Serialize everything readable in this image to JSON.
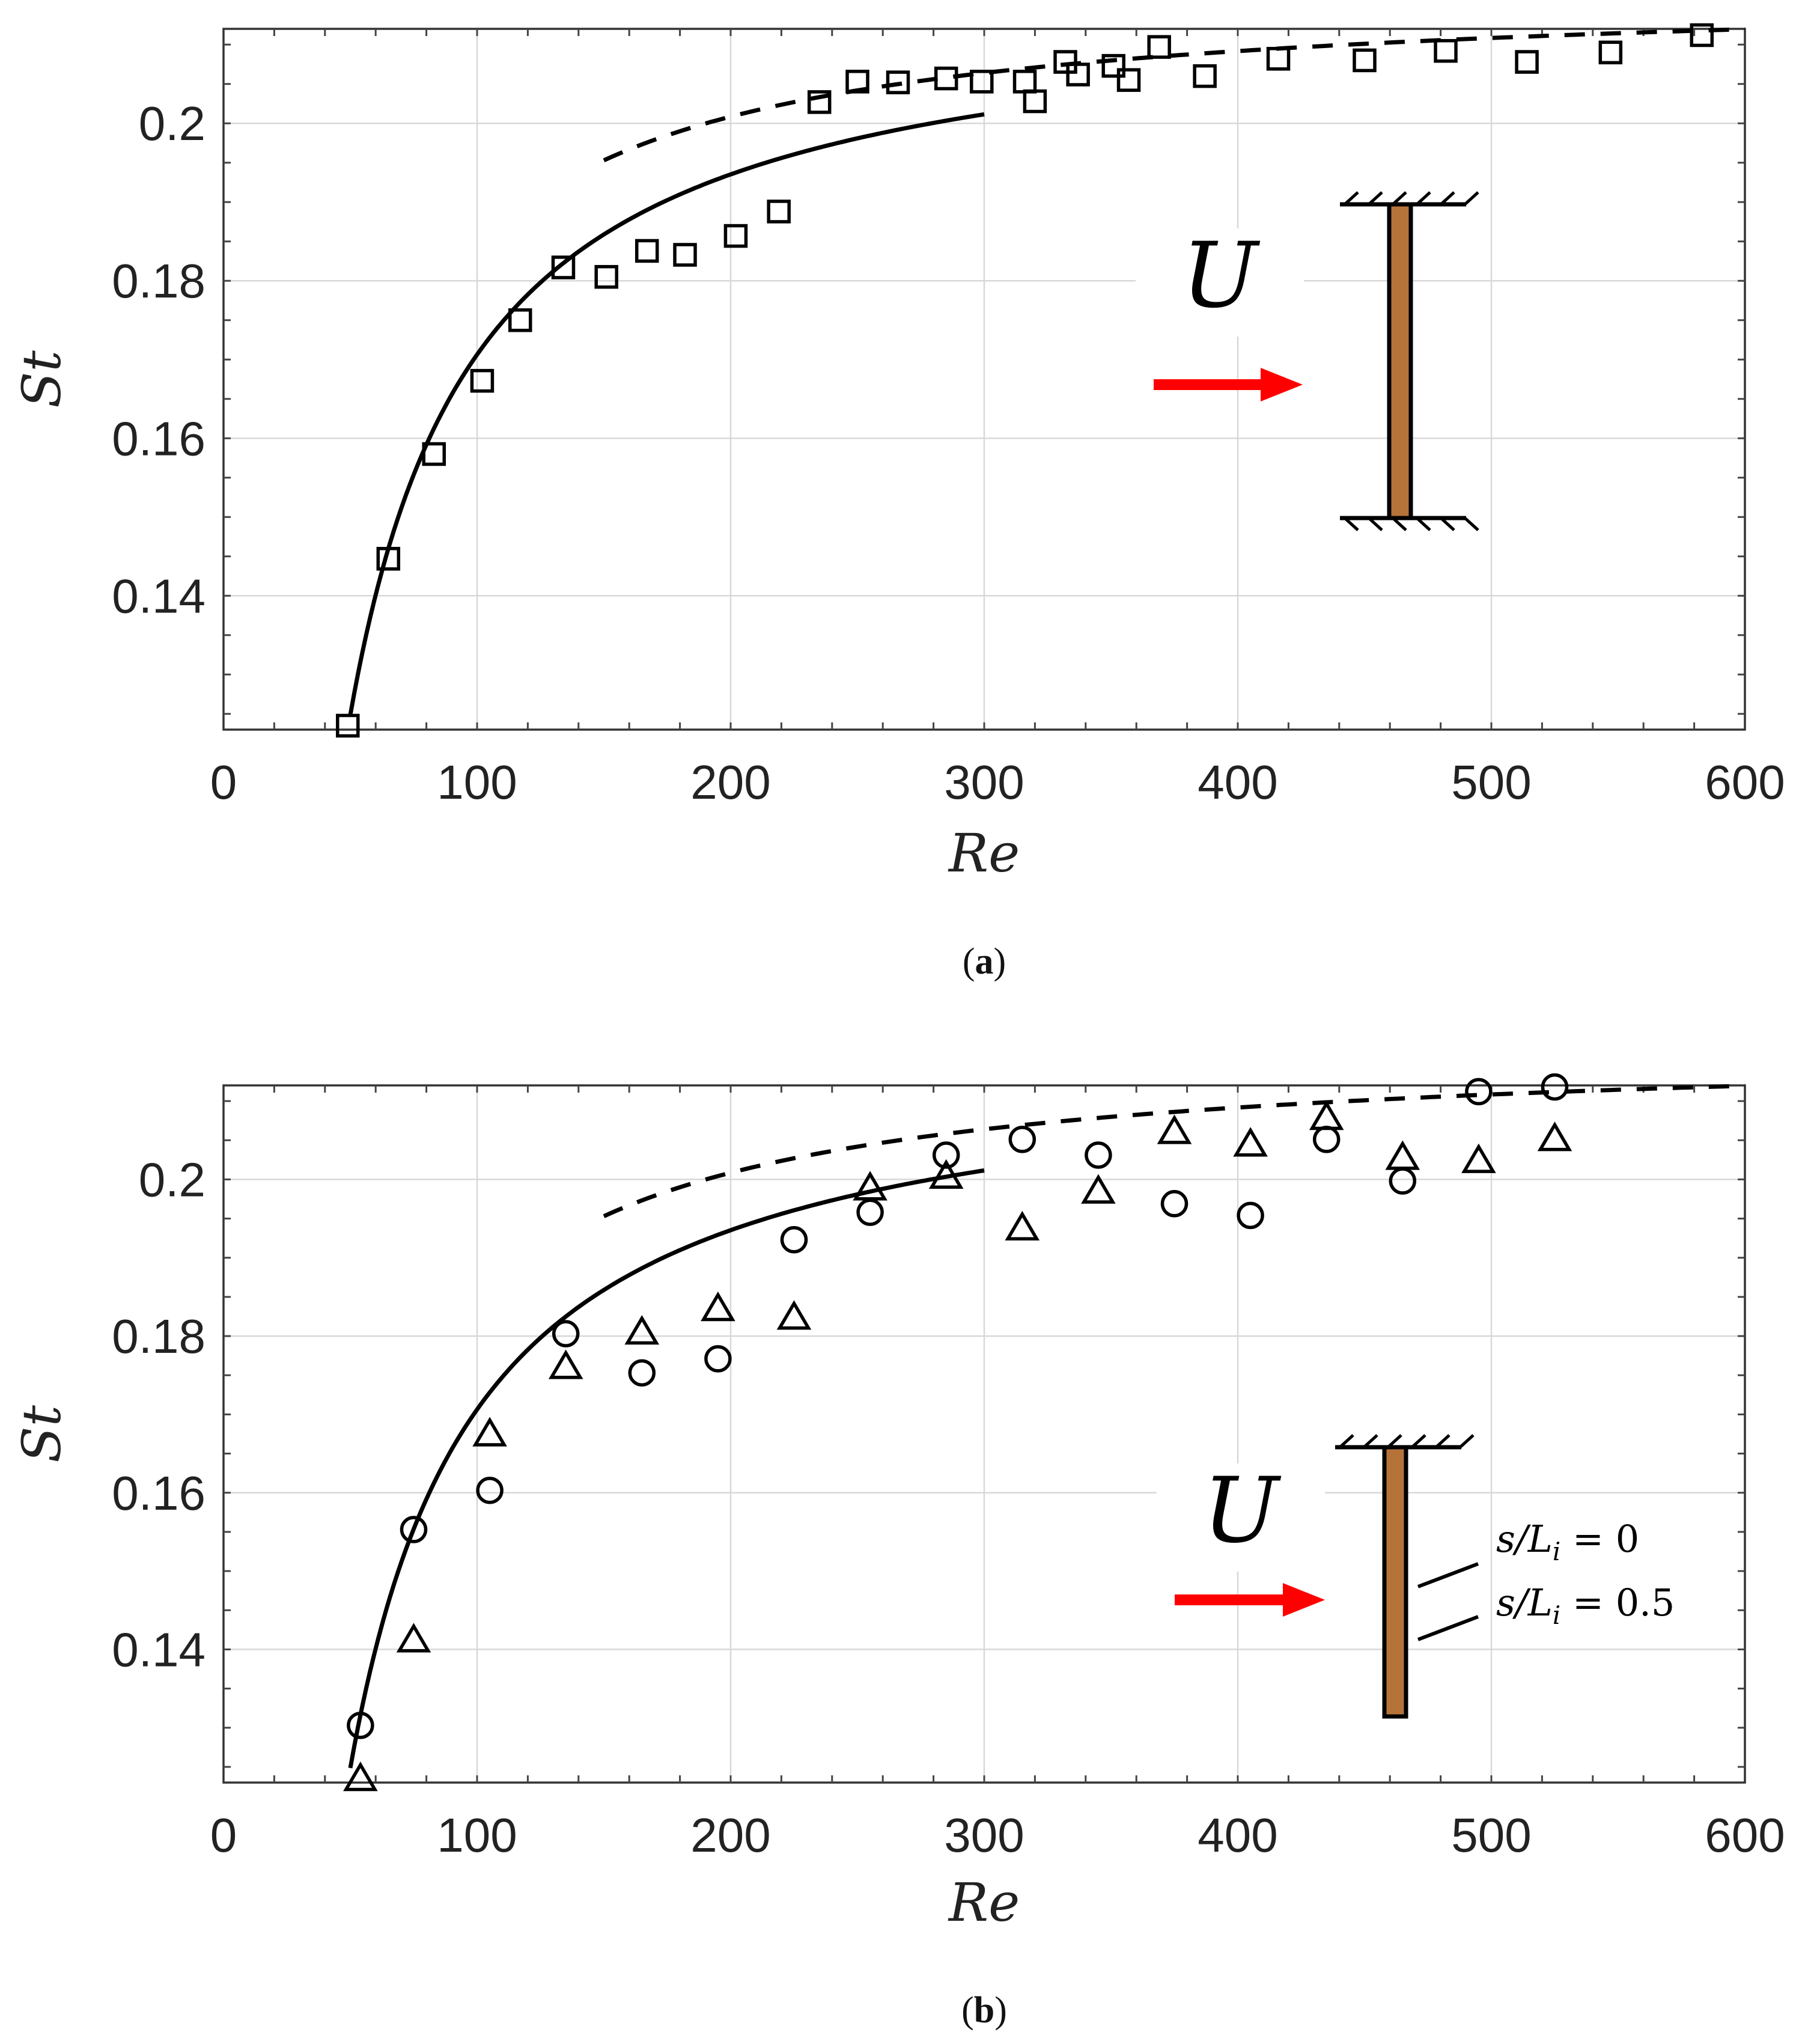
{
  "chart_data": [
    {
      "id": "a",
      "type": "scatter",
      "panel_label": "a",
      "xlabel": "Re",
      "ylabel": "St",
      "xlim": [
        0,
        600
      ],
      "ylim": [
        0.123,
        0.212
      ],
      "xticks": [
        "0",
        "100",
        "200",
        "300",
        "400",
        "500",
        "600"
      ],
      "yticks": [
        "0.14",
        "0.16",
        "0.18",
        "0.2"
      ],
      "grid": true,
      "inset": {
        "flow_label": "U",
        "clamp": "both-ends"
      },
      "series": [
        {
          "name": "squares",
          "marker": "square",
          "points": [
            [
              49,
              0.1235
            ],
            [
              65,
              0.1447
            ],
            [
              83,
              0.158
            ],
            [
              102,
              0.1673
            ],
            [
              117,
              0.175
            ],
            [
              134,
              0.1817
            ],
            [
              151,
              0.1805
            ],
            [
              167,
              0.1838
            ],
            [
              182,
              0.1833
            ],
            [
              202,
              0.1857
            ],
            [
              219,
              0.1888
            ],
            [
              235,
              0.2027
            ],
            [
              250,
              0.2053
            ],
            [
              266,
              0.2052
            ],
            [
              285,
              0.2057
            ],
            [
              299,
              0.2053
            ],
            [
              316,
              0.2053
            ],
            [
              320,
              0.2028
            ],
            [
              332,
              0.2078
            ],
            [
              337,
              0.2062
            ],
            [
              351,
              0.2073
            ],
            [
              357,
              0.2055
            ],
            [
              369,
              0.2097
            ],
            [
              387,
              0.206
            ],
            [
              416,
              0.2082
            ],
            [
              450,
              0.208
            ],
            [
              482,
              0.2092
            ],
            [
              514,
              0.2078
            ],
            [
              547,
              0.209
            ],
            [
              583,
              0.2112
            ]
          ]
        },
        {
          "name": "solid-fit",
          "line": "solid",
          "kind": "low-Re",
          "A": 0.2164,
          "B": 4.577,
          "xrange": [
            50,
            300
          ]
        },
        {
          "name": "dashed-fit",
          "line": "dashed",
          "kind": "high-Re",
          "A": 0.2175,
          "B": 3.33,
          "xrange": [
            150,
            600
          ]
        }
      ]
    },
    {
      "id": "b",
      "type": "scatter",
      "panel_label": "b",
      "xlabel": "Re",
      "ylabel": "St",
      "xlim": [
        0,
        600
      ],
      "ylim": [
        0.123,
        0.212
      ],
      "xticks": [
        "0",
        "100",
        "200",
        "300",
        "400",
        "500",
        "600"
      ],
      "yticks": [
        "0.14",
        "0.16",
        "0.18",
        "0.2"
      ],
      "grid": true,
      "inset": {
        "flow_label": "U",
        "clamp": "top-only",
        "positions": [
          "s/L_i = 0",
          "s/L_i = 0.5"
        ]
      },
      "series": [
        {
          "name": "s/L_i = 0",
          "marker": "circle",
          "points": [
            [
              54,
              0.1303
            ],
            [
              75,
              0.1553
            ],
            [
              105,
              0.1603
            ],
            [
              135,
              0.1803
            ],
            [
              165,
              0.1753
            ],
            [
              195,
              0.1771
            ],
            [
              225,
              0.1923
            ],
            [
              255,
              0.1958
            ],
            [
              285,
              0.2031
            ],
            [
              315,
              0.2051
            ],
            [
              345,
              0.2031
            ],
            [
              375,
              0.1969
            ],
            [
              405,
              0.1954
            ],
            [
              435,
              0.2051
            ],
            [
              465,
              0.1998
            ],
            [
              495,
              0.2112
            ],
            [
              525,
              0.2118
            ]
          ]
        },
        {
          "name": "s/L_i = 0.5",
          "marker": "triangle",
          "points": [
            [
              54,
              0.1235
            ],
            [
              75,
              0.1412
            ],
            [
              105,
              0.1675
            ],
            [
              135,
              0.1761
            ],
            [
              165,
              0.1805
            ],
            [
              195,
              0.1835
            ],
            [
              225,
              0.1824
            ],
            [
              255,
              0.1989
            ],
            [
              285,
              0.2004
            ],
            [
              315,
              0.1938
            ],
            [
              345,
              0.1985
            ],
            [
              375,
              0.2061
            ],
            [
              405,
              0.2045
            ],
            [
              435,
              0.2079
            ],
            [
              465,
              0.2028
            ],
            [
              495,
              0.2024
            ],
            [
              525,
              0.2052
            ]
          ]
        },
        {
          "name": "solid-fit",
          "line": "solid",
          "kind": "low-Re",
          "A": 0.2164,
          "B": 4.577,
          "xrange": [
            50,
            300
          ]
        },
        {
          "name": "dashed-fit",
          "line": "dashed",
          "kind": "high-Re",
          "A": 0.2175,
          "B": 3.33,
          "xrange": [
            150,
            600
          ]
        }
      ]
    }
  ],
  "captions": {
    "open": "(",
    "a": "a",
    "b": "b",
    "close": ")"
  },
  "inset_text": {
    "flow": "U",
    "s0": "s/L",
    "s0_sub": "i",
    "s0_value": " = 0",
    "s1": "s/L",
    "s1_sub": "i",
    "s1_value": " = 0.5"
  },
  "colors": {
    "arrow": "#ff0000",
    "beam": "#b5733a",
    "line": "#000000"
  }
}
